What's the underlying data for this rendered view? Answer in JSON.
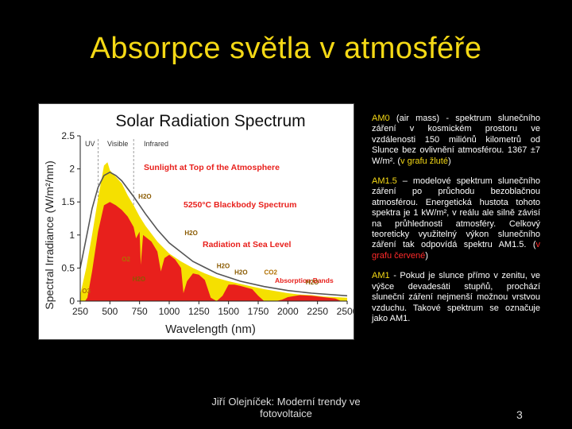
{
  "slide": {
    "title": "Absorpce světla v atmosféře",
    "footer": "Jiří Olejníček: Moderní trendy ve fotovoltaice",
    "page_number": "3"
  },
  "description": {
    "am0": {
      "term": "AM0",
      "text": " (air mass) - spektrum slunečního záření v kosmickém prostoru ve vzdálenosti 150 miliónů kilometrů od Slunce bez ovlivnění atmosférou. 1367 ±7 W/m². (",
      "highlight": "v grafu žluté",
      "end": ")"
    },
    "am15": {
      "term": "AM1.5",
      "text": " – modelové spektrum slunečního záření po průchodu bezoblačnou atmosférou. Energetická hustota tohoto spektra je 1 kW/m², v reálu ale silně závisí na průhlednosti atmosféry. Celkový teoreticky využitelný výkon slunečního záření tak odpovídá spektru AM1.5. (",
      "highlight": "v grafu červené",
      "end": ")"
    },
    "am1": {
      "term": "AM1",
      "text": " - Pokud je slunce přímo v zenitu, ve výšce devadesáti stupňů, prochází sluneční záření nejmenší možnou vrstvou vzduchu. Takové spektrum se označuje jako AM1."
    }
  },
  "chart_data": {
    "type": "area",
    "title": "Solar Radiation Spectrum",
    "xlabel": "Wavelength (nm)",
    "ylabel": "Spectral Irradiance (W/m²/nm)",
    "xlim": [
      250,
      2500
    ],
    "ylim": [
      0,
      2.5
    ],
    "xticks": [
      "250",
      "500",
      "750",
      "1000",
      "1250",
      "1500",
      "1750",
      "2000",
      "2250",
      "2500"
    ],
    "yticks": [
      "0",
      "0.5",
      "1",
      "1.5",
      "2",
      "2.5"
    ],
    "regions": {
      "uv": "UV",
      "visible": "Visible",
      "infrared": "Infrared"
    },
    "annotations": {
      "top_atmosphere": "Sunlight at Top of the Atmosphere",
      "blackbody": "5250°C Blackbody Spectrum",
      "sea_level": "Radiation at Sea Level",
      "absorption": "Absorption Bands"
    },
    "band_labels": [
      "O3",
      "O2",
      "H2O",
      "H2O",
      "H2O",
      "H2O",
      "H2O",
      "CO2",
      "H2O"
    ],
    "colors": {
      "top": "#f5e000",
      "sea": "#e8201c",
      "blackbody": "#555555",
      "annotation": "#e8201c"
    },
    "series": [
      {
        "name": "Sunlight at Top of the Atmosphere",
        "x": [
          250,
          300,
          350,
          400,
          450,
          480,
          500,
          550,
          600,
          650,
          700,
          750,
          800,
          900,
          1000,
          1100,
          1200,
          1300,
          1400,
          1500,
          1600,
          1700,
          1800,
          1900,
          2000,
          2100,
          2200,
          2300,
          2400,
          2500
        ],
        "values": [
          0.1,
          0.5,
          1.0,
          1.55,
          2.05,
          2.1,
          1.98,
          1.88,
          1.78,
          1.6,
          1.45,
          1.28,
          1.14,
          0.9,
          0.72,
          0.6,
          0.5,
          0.42,
          0.35,
          0.3,
          0.26,
          0.22,
          0.18,
          0.15,
          0.12,
          0.1,
          0.09,
          0.07,
          0.06,
          0.05
        ]
      },
      {
        "name": "5250°C Blackbody Spectrum",
        "x": [
          250,
          300,
          350,
          400,
          450,
          500,
          550,
          600,
          700,
          800,
          900,
          1000,
          1200,
          1400,
          1600,
          1800,
          2000,
          2200,
          2500
        ],
        "values": [
          0.5,
          0.95,
          1.4,
          1.72,
          1.9,
          1.95,
          1.9,
          1.82,
          1.58,
          1.32,
          1.08,
          0.88,
          0.6,
          0.42,
          0.3,
          0.22,
          0.16,
          0.12,
          0.08
        ]
      },
      {
        "name": "Radiation at Sea Level",
        "x": [
          250,
          290,
          310,
          350,
          400,
          450,
          500,
          550,
          600,
          650,
          700,
          720,
          750,
          760,
          780,
          850,
          900,
          930,
          960,
          1000,
          1050,
          1100,
          1120,
          1150,
          1200,
          1250,
          1300,
          1350,
          1400,
          1450,
          1500,
          1550,
          1600,
          1700,
          1750,
          1800,
          1850,
          1900,
          1950,
          2000,
          2100,
          2200,
          2300,
          2400,
          2450,
          2500
        ],
        "values": [
          0,
          0,
          0.05,
          0.45,
          1.05,
          1.45,
          1.5,
          1.45,
          1.38,
          1.28,
          1.12,
          0.95,
          1.05,
          0.55,
          1.0,
          0.9,
          0.75,
          0.45,
          0.65,
          0.7,
          0.63,
          0.5,
          0.12,
          0.3,
          0.42,
          0.4,
          0.32,
          0.05,
          0.0,
          0.08,
          0.25,
          0.25,
          0.23,
          0.18,
          0.08,
          0.0,
          0.0,
          0.0,
          0.02,
          0.06,
          0.09,
          0.08,
          0.06,
          0.04,
          0.0,
          0.0
        ]
      }
    ]
  }
}
